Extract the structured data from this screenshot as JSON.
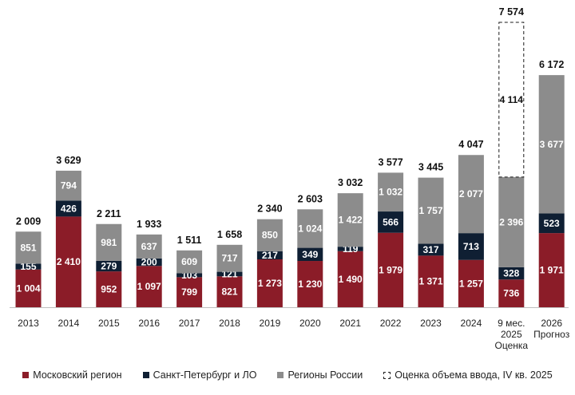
{
  "chart_data": {
    "type": "bar",
    "stacked": true,
    "categories": [
      [
        "2013"
      ],
      [
        "2014"
      ],
      [
        "2015"
      ],
      [
        "2016"
      ],
      [
        "2017"
      ],
      [
        "2018"
      ],
      [
        "2019"
      ],
      [
        "2020"
      ],
      [
        "2021"
      ],
      [
        "2022"
      ],
      [
        "2023"
      ],
      [
        "2024"
      ],
      [
        "9 мес.",
        "2025",
        "Оценка"
      ],
      [
        "2026",
        "Прогноз"
      ]
    ],
    "series": [
      {
        "name": "Московский регион",
        "color": "#8b1c28",
        "values": [
          1004,
          2410,
          952,
          1097,
          799,
          821,
          1273,
          1230,
          1490,
          1979,
          1371,
          1257,
          736,
          1971
        ],
        "labels": [
          "1 004",
          "2 410",
          "952",
          "1 097",
          "799",
          "821",
          "1 273",
          "1 230",
          "1 490",
          "1 979",
          "1 371",
          "1 257",
          "736",
          "1 971"
        ]
      },
      {
        "name": "Санкт-Петербург и ЛО",
        "color": "#0f1f33",
        "values": [
          155,
          426,
          279,
          200,
          103,
          121,
          217,
          349,
          119,
          566,
          317,
          713,
          328,
          523
        ],
        "labels": [
          "155",
          "426",
          "279",
          "200",
          "103",
          "121",
          "217",
          "349",
          "119",
          "566",
          "317",
          "713",
          "328",
          "523"
        ]
      },
      {
        "name": "Регионы России",
        "color": "#8c8c8c",
        "values": [
          851,
          794,
          981,
          637,
          609,
          717,
          850,
          1024,
          1422,
          1032,
          1757,
          2077,
          2396,
          3677
        ],
        "labels": [
          "851",
          "794",
          "981",
          "637",
          "609",
          "717",
          "850",
          "1 024",
          "1 422",
          "1 032",
          "1 757",
          "2 077",
          "2 396",
          "3 677"
        ]
      },
      {
        "name": "Оценка объема ввода, IV кв. 2025",
        "style": "dashed-outline",
        "values": [
          0,
          0,
          0,
          0,
          0,
          0,
          0,
          0,
          0,
          0,
          0,
          0,
          4114,
          0
        ],
        "labels": [
          "",
          "",
          "",
          "",
          "",
          "",
          "",
          "",
          "",
          "",
          "",
          "",
          "4 114",
          ""
        ]
      }
    ],
    "totals": [
      2009,
      3629,
      2211,
      1933,
      1511,
      1658,
      2340,
      2603,
      3032,
      3577,
      3445,
      4047,
      7574,
      6172
    ],
    "total_labels": [
      "2 009",
      "3 629",
      "2 211",
      "1 933",
      "1 511",
      "1 658",
      "2 340",
      "2 603",
      "3 032",
      "3 577",
      "3 445",
      "4 047",
      "7 574",
      "6 172"
    ],
    "ylim": [
      0,
      7700
    ],
    "grid": false,
    "legend_position": "bottom",
    "title": "",
    "xlabel": "",
    "ylabel": ""
  }
}
